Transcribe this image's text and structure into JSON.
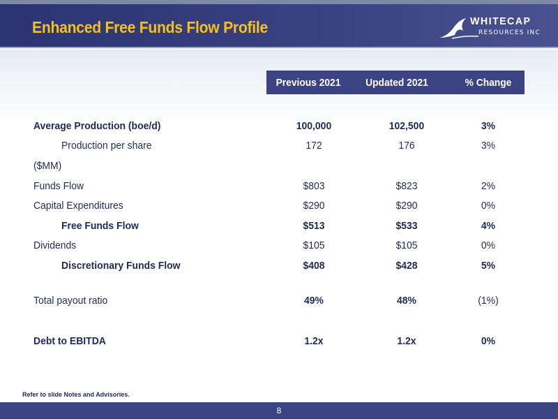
{
  "header": {
    "title": "Enhanced Free Funds Flow Profile",
    "logo_word": "WHITECAP",
    "logo_sub": "RESOURCES INC"
  },
  "table": {
    "columns": [
      "Previous 2021",
      "Updated 2021",
      "% Change"
    ],
    "rows": [
      {
        "label": "Average Production (boe/d)",
        "values": [
          "100,000",
          "102,500",
          "3%"
        ]
      },
      {
        "label": "Production per share",
        "values": [
          "172",
          "176",
          "3%"
        ]
      },
      {
        "label": "($MM)",
        "values": [
          "",
          "",
          ""
        ]
      },
      {
        "label": "Funds Flow",
        "values": [
          "$803",
          "$823",
          "2%"
        ]
      },
      {
        "label": "Capital Expenditures",
        "values": [
          "$290",
          "$290",
          "0%"
        ]
      },
      {
        "label": "Free Funds Flow",
        "values": [
          "$513",
          "$533",
          "4%"
        ]
      },
      {
        "label": "Dividends",
        "values": [
          "$105",
          "$105",
          "0%"
        ]
      },
      {
        "label": "Discretionary Funds Flow",
        "values": [
          "$408",
          "$428",
          "5%"
        ]
      },
      {
        "label": "Total payout ratio",
        "values": [
          "49%",
          "48%",
          "(1%)"
        ]
      },
      {
        "label": "Debt to EBITDA",
        "values": [
          "1.2x",
          "1.2x",
          "0%"
        ]
      }
    ]
  },
  "footnote": "Refer to slide Notes and Advisories.",
  "page_number": "8",
  "colors": {
    "navy": "#3b4385",
    "title_yellow": "#f4c21b",
    "text": "#1f2a5c"
  }
}
